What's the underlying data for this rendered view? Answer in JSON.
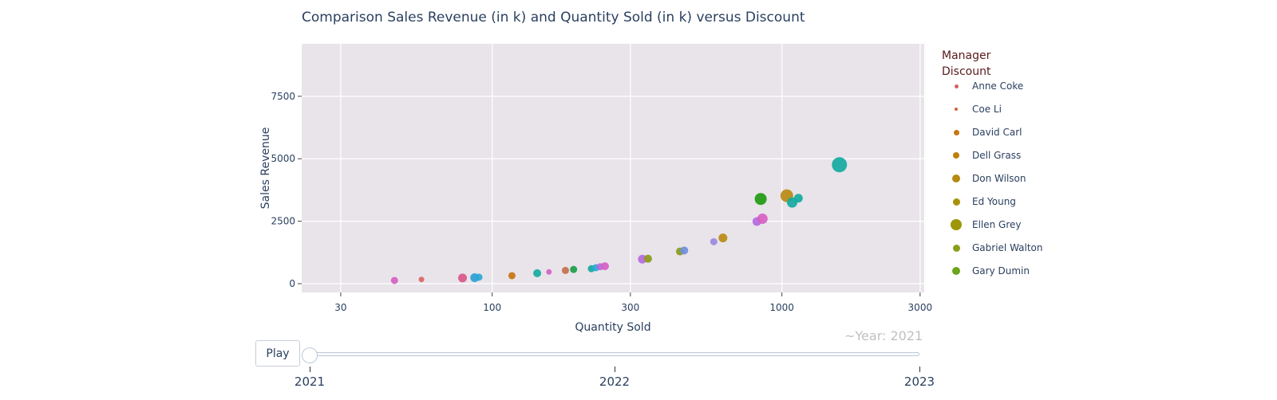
{
  "chart_data": {
    "type": "scatter",
    "title": "Comparison Sales Revenue (in k) and Quantity Sold (in k) versus Discount",
    "xlabel": "Quantity Sold",
    "ylabel": "Sales Revenue",
    "x_scale": "log",
    "xlim": [
      22,
      3100
    ],
    "ylim": [
      -350,
      9600
    ],
    "x_ticks": [
      30,
      100,
      300,
      1000,
      3000
    ],
    "x_tick_labels": [
      "30",
      "100",
      "300",
      "1000",
      "3000"
    ],
    "y_ticks": [
      0,
      2500,
      5000,
      7500
    ],
    "y_tick_labels": [
      "0",
      "2500",
      "5000",
      "7500"
    ],
    "grid": true,
    "legend": {
      "title": "Manager\nDiscount",
      "placement": "right",
      "entries": [
        {
          "name": "Anne Coke",
          "color": "#d0625e",
          "size": 5
        },
        {
          "name": "Coe Li",
          "color": "#d2623b",
          "size": 4
        },
        {
          "name": "David Carl",
          "color": "#c77510",
          "size": 7
        },
        {
          "name": "Dell Grass",
          "color": "#bf7f0a",
          "size": 8
        },
        {
          "name": "Don Wilson",
          "color": "#b88a12",
          "size": 10
        },
        {
          "name": "Ed Young",
          "color": "#a8920a",
          "size": 9
        },
        {
          "name": "Ellen Grey",
          "color": "#9e9608",
          "size": 14
        },
        {
          "name": "Gabriel Walton",
          "color": "#86a01c",
          "size": 9
        },
        {
          "name": "Gary Dumin",
          "color": "#6aa51e",
          "size": 10
        }
      ]
    },
    "points": [
      {
        "x": 46,
        "y": 130,
        "color": "#d65fc2",
        "size": 9
      },
      {
        "x": 57,
        "y": 170,
        "color": "#d96565",
        "size": 7
      },
      {
        "x": 79,
        "y": 230,
        "color": "#d9578a",
        "size": 11
      },
      {
        "x": 87,
        "y": 240,
        "color": "#2d9ed6",
        "size": 11
      },
      {
        "x": 90,
        "y": 260,
        "color": "#2ba8d4",
        "size": 9
      },
      {
        "x": 117,
        "y": 320,
        "color": "#c77510",
        "size": 9
      },
      {
        "x": 143,
        "y": 420,
        "color": "#14aaa0",
        "size": 10
      },
      {
        "x": 157,
        "y": 470,
        "color": "#d65fc2",
        "size": 7
      },
      {
        "x": 179,
        "y": 530,
        "color": "#c4704c",
        "size": 9
      },
      {
        "x": 191,
        "y": 570,
        "color": "#1aa048",
        "size": 9
      },
      {
        "x": 220,
        "y": 600,
        "color": "#14aaa0",
        "size": 9
      },
      {
        "x": 228,
        "y": 640,
        "color": "#2ba8d4",
        "size": 9
      },
      {
        "x": 236,
        "y": 680,
        "color": "#b46ae0",
        "size": 9
      },
      {
        "x": 245,
        "y": 700,
        "color": "#d65fc2",
        "size": 10
      },
      {
        "x": 330,
        "y": 980,
        "color": "#b46ae0",
        "size": 11
      },
      {
        "x": 345,
        "y": 1000,
        "color": "#8a9a1a",
        "size": 10
      },
      {
        "x": 445,
        "y": 1290,
        "color": "#8a9a1a",
        "size": 10
      },
      {
        "x": 460,
        "y": 1330,
        "color": "#6f8fe0",
        "size": 10
      },
      {
        "x": 582,
        "y": 1680,
        "color": "#9a8ae0",
        "size": 9
      },
      {
        "x": 626,
        "y": 1830,
        "color": "#b88a12",
        "size": 11
      },
      {
        "x": 820,
        "y": 2490,
        "color": "#b46ae0",
        "size": 11
      },
      {
        "x": 857,
        "y": 2600,
        "color": "#d65fc2",
        "size": 13
      },
      {
        "x": 845,
        "y": 3390,
        "color": "#1e9a10",
        "size": 15
      },
      {
        "x": 1040,
        "y": 3520,
        "color": "#b88a12",
        "size": 16
      },
      {
        "x": 1085,
        "y": 3250,
        "color": "#14aaa0",
        "size": 13
      },
      {
        "x": 1140,
        "y": 3420,
        "color": "#14aaa0",
        "size": 11
      },
      {
        "x": 1580,
        "y": 4760,
        "color": "#14aaa0",
        "size": 19
      }
    ]
  },
  "animation": {
    "frame_label": "~Year: 2021",
    "play_label": "Play",
    "steps": [
      "2021",
      "2022",
      "2023"
    ],
    "current_step": 0
  }
}
